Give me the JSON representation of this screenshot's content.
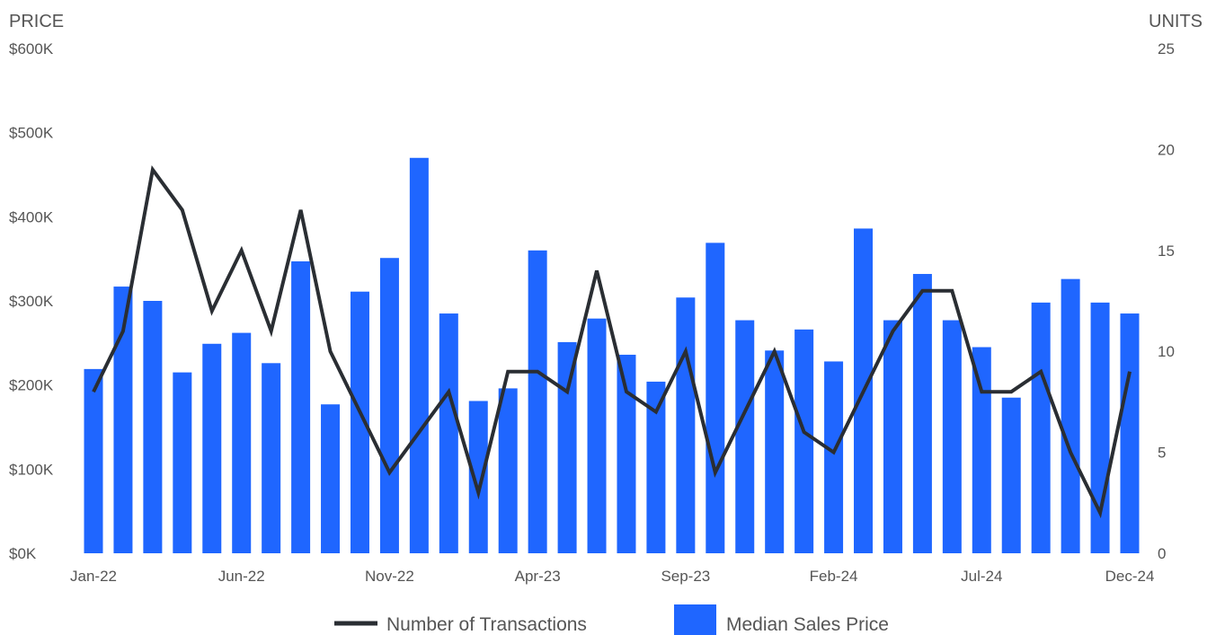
{
  "chart_data": {
    "type": "bar",
    "title": "",
    "left_axis_label": "PRICE",
    "right_axis_label": "UNITS",
    "left_ylim": [
      0,
      600000
    ],
    "left_ticks": [
      "$0K",
      "$100K",
      "$200K",
      "$300K",
      "$400K",
      "$500K",
      "$600K"
    ],
    "right_ylim": [
      0,
      25
    ],
    "right_ticks": [
      "0",
      "5",
      "10",
      "15",
      "20",
      "25"
    ],
    "x_tick_labels": [
      "Jan-22",
      "Jun-22",
      "Nov-22",
      "Apr-23",
      "Sep-23",
      "Feb-24",
      "Jul-24",
      "Dec-24"
    ],
    "x_tick_every": 5,
    "grid": false,
    "legend_position": "bottom",
    "categories": [
      "Jan-22",
      "Feb-22",
      "Mar-22",
      "Apr-22",
      "May-22",
      "Jun-22",
      "Jul-22",
      "Aug-22",
      "Sep-22",
      "Oct-22",
      "Nov-22",
      "Dec-22",
      "Jan-23",
      "Feb-23",
      "Mar-23",
      "Apr-23",
      "May-23",
      "Jun-23",
      "Jul-23",
      "Aug-23",
      "Sep-23",
      "Oct-23",
      "Nov-23",
      "Dec-23",
      "Jan-24",
      "Feb-24",
      "Mar-24",
      "Apr-24",
      "May-24",
      "Jun-24",
      "Jul-24",
      "Aug-24",
      "Sep-24",
      "Oct-24",
      "Nov-24",
      "Dec-24"
    ],
    "series": [
      {
        "name": "Median Sales Price",
        "type": "bar",
        "axis": "left",
        "color": "#1f66ff",
        "values": [
          219000,
          317000,
          300000,
          215000,
          249000,
          262000,
          226000,
          347000,
          177000,
          311000,
          351000,
          470000,
          285000,
          181000,
          196000,
          360000,
          251000,
          279000,
          236000,
          204000,
          304000,
          369000,
          277000,
          241000,
          266000,
          228000,
          386000,
          277000,
          332000,
          277000,
          245000,
          185000,
          298000,
          326000,
          298000,
          285000
        ]
      },
      {
        "name": "Number of Transactions",
        "type": "line",
        "axis": "right",
        "color": "#2a2e33",
        "values": [
          8,
          11,
          19,
          17,
          12,
          15,
          11,
          17,
          10,
          7,
          4,
          6,
          8,
          3,
          9,
          9,
          8,
          14,
          8,
          7,
          10,
          4,
          7,
          10,
          6,
          5,
          8,
          11,
          13,
          13,
          8,
          8,
          9,
          5,
          2,
          9
        ]
      }
    ]
  }
}
